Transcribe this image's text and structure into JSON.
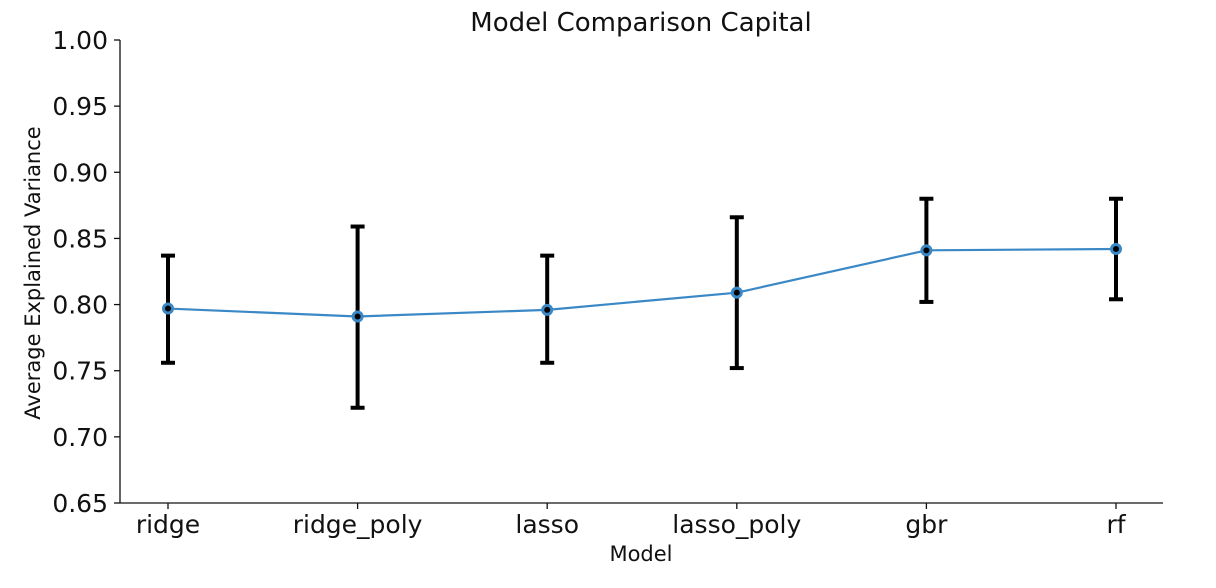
{
  "chart_data": {
    "type": "line",
    "title": "Model Comparison Capital",
    "xlabel": "Model",
    "ylabel": "Average Explained Variance",
    "categories": [
      "ridge",
      "ridge_poly",
      "lasso",
      "lasso_poly",
      "gbr",
      "rf"
    ],
    "series": [
      {
        "values": [
          0.797,
          0.791,
          0.796,
          0.809,
          0.841,
          0.842
        ],
        "error_low": [
          0.756,
          0.722,
          0.756,
          0.752,
          0.802,
          0.804
        ],
        "error_high": [
          0.837,
          0.859,
          0.837,
          0.866,
          0.88,
          0.88
        ],
        "color": "#3a88c6"
      }
    ],
    "ylim": [
      0.65,
      1.0
    ],
    "yticks": [
      "0.65",
      "0.70",
      "0.75",
      "0.80",
      "0.85",
      "0.90",
      "0.95",
      "1.00"
    ],
    "grid": false,
    "legend": "none"
  }
}
